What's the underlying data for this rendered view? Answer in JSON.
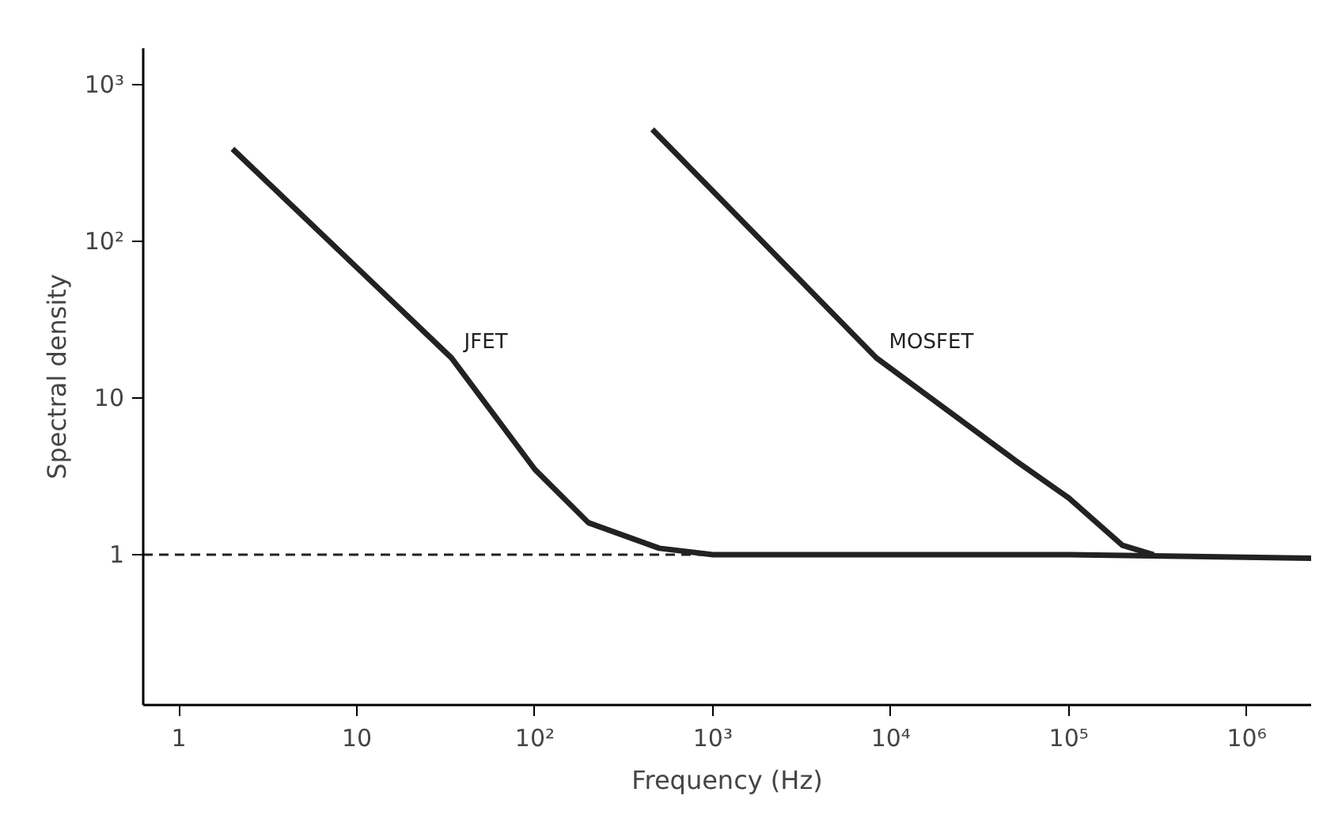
{
  "chart_data": {
    "type": "line",
    "xlabel": "Frequency (Hz)",
    "ylabel": "Spectral density",
    "log": "xy",
    "xlim": [
      0.63,
      2300000
    ],
    "ylim": [
      0.11,
      1700
    ],
    "xticks": [
      1,
      10,
      {
        "value": 100,
        "label": "10²"
      },
      {
        "value": 1000,
        "label": "10³"
      },
      {
        "value": 10000,
        "label": "10⁴"
      },
      {
        "value": 100000,
        "label": "10⁵"
      },
      {
        "value": 1000000,
        "label": "10⁶"
      }
    ],
    "yticks": [
      1,
      10,
      {
        "value": 100,
        "label": "10²"
      },
      {
        "value": 1000,
        "label": "10³"
      }
    ],
    "grid": false,
    "marker": "none",
    "line_style": "solid",
    "series": [
      {
        "name": "JFET",
        "color": "#222222",
        "x": [
          2,
          34,
          100,
          200,
          500,
          1000,
          100000,
          2300000
        ],
        "values": [
          388,
          18,
          3.5,
          1.6,
          1.1,
          1.0,
          1.0,
          0.95
        ]
      },
      {
        "name": "MOSFET",
        "color": "#222222",
        "x": [
          457,
          8300,
          50000,
          100000,
          200000,
          300000
        ],
        "values": [
          517,
          18,
          4,
          2.3,
          1.15,
          1.0
        ]
      }
    ],
    "ref_lines": [
      {
        "axis": "y",
        "value": 1,
        "label": null,
        "color": "#222222",
        "line_style": "dashed"
      }
    ]
  }
}
